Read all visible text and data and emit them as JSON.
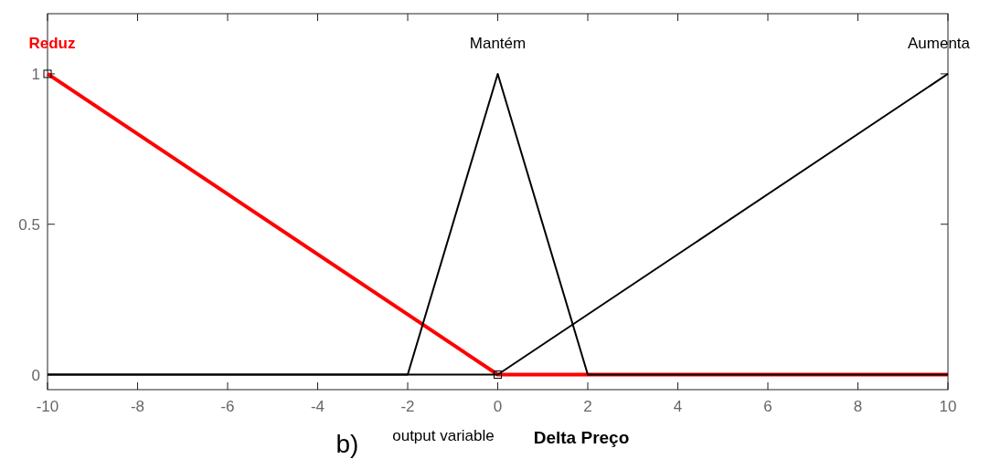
{
  "chart_data": {
    "type": "line",
    "xlabel": "output variable",
    "annotations": [
      "b)",
      "Delta Preço"
    ],
    "xlim": [
      -10,
      10
    ],
    "xticks": [
      -10,
      -8,
      -6,
      -4,
      -2,
      0,
      2,
      4,
      6,
      8,
      10
    ],
    "ylim": [
      -0.05,
      1.2
    ],
    "yticks": [
      0,
      0.5,
      1
    ],
    "grid": false,
    "line_style": "solid",
    "series": [
      {
        "name": "Reduz",
        "color": "#ff0000",
        "x": [
          -10,
          0,
          10
        ],
        "values": [
          1,
          0,
          0
        ]
      },
      {
        "name": "Mantém",
        "color": "#000000",
        "x": [
          -10,
          -2,
          0,
          2,
          10
        ],
        "values": [
          0,
          0,
          1,
          0,
          0
        ]
      },
      {
        "name": "Aumenta",
        "color": "#000000",
        "x": [
          -10,
          0,
          10
        ],
        "values": [
          0,
          0,
          1
        ]
      }
    ]
  }
}
